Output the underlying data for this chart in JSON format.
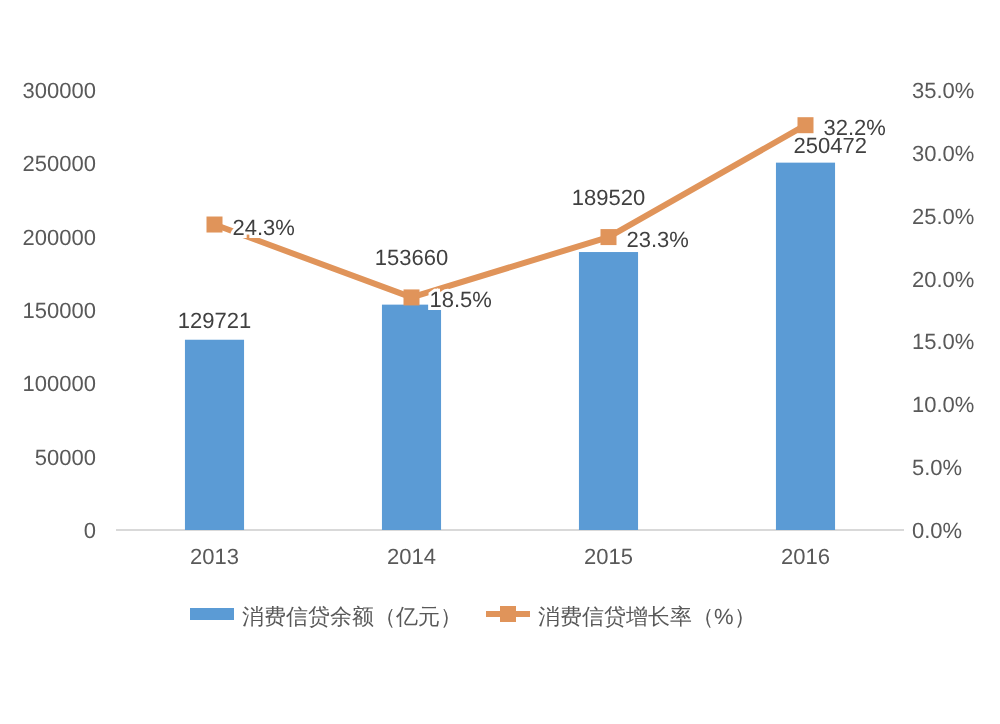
{
  "chart_data": {
    "type": "bar",
    "categories": [
      "2013",
      "2014",
      "2015",
      "2016"
    ],
    "series": [
      {
        "name": "消费信贷余额（亿元）",
        "type": "bar",
        "color": "#5b9bd5",
        "values": [
          129721,
          153660,
          189520,
          250472
        ],
        "value_labels": [
          "129721",
          "153660",
          "189520",
          "250472"
        ]
      },
      {
        "name": "消费信贷增长率（%）",
        "type": "line",
        "axis": "y2",
        "color": "#e0945a",
        "marker": "square",
        "values": [
          24.3,
          18.5,
          23.3,
          32.2
        ],
        "value_labels": [
          "24.3%",
          "18.5%",
          "23.3%",
          "32.2%"
        ]
      }
    ],
    "ylim": [
      0,
      300000
    ],
    "yticks": [
      0,
      50000,
      100000,
      150000,
      200000,
      250000,
      300000
    ],
    "y2lim": [
      0,
      35
    ],
    "y2ticks": [
      {
        "value": 0,
        "label": "0.0%"
      },
      {
        "value": 5,
        "label": "5.0%"
      },
      {
        "value": 10,
        "label": "10.0%"
      },
      {
        "value": 15,
        "label": "15.0%"
      },
      {
        "value": 20,
        "label": "20.0%"
      },
      {
        "value": 25,
        "label": "25.0%"
      },
      {
        "value": 30,
        "label": "30.0%"
      },
      {
        "value": 35,
        "label": "35.0%"
      }
    ],
    "grid": false,
    "legend": "bottom"
  }
}
